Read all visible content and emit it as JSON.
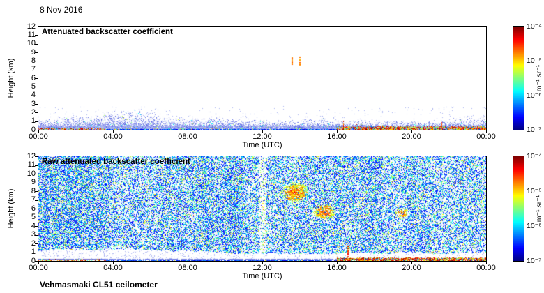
{
  "page": {
    "date_label": "8 Nov 2016",
    "footer_label": "Vehmasmaki CL51 ceilometer"
  },
  "chart_data": [
    {
      "type": "heatmap",
      "title": "Attenuated backscatter coefficient",
      "xlabel": "Time (UTC)",
      "ylabel": "Height (km)",
      "x_ticks": [
        "00:00",
        "04:00",
        "08:00",
        "12:00",
        "16:00",
        "20:00",
        "00:00"
      ],
      "y_ticks": [
        "12",
        "11",
        "10",
        "9",
        "8",
        "7",
        "6",
        "5",
        "4",
        "3",
        "2",
        "1",
        "0"
      ],
      "x_range_hours": [
        0,
        24
      ],
      "y_range_km": [
        0,
        12
      ],
      "colorbar": {
        "colormap": "jet",
        "scale": "log",
        "ticks": [
          "10⁻⁴",
          "10⁻⁵",
          "10⁻⁶",
          "10⁻⁷"
        ],
        "label": "m⁻¹ sr⁻¹",
        "max": "1e-4 m-1 sr-1",
        "min": "1e-7 m-1 sr-1"
      },
      "render": {
        "seed": 1337,
        "kind": "clean",
        "boundary_layer": {
          "top_km": 1.2,
          "surface_strong_after_h": 16,
          "surface_specks_before_h": 3.6
        },
        "features": [
          {
            "kind": "cloud-dash",
            "t": 13.58,
            "h0": 7.55,
            "h1": 8.35
          },
          {
            "kind": "cloud-dash",
            "t": 13.97,
            "h0": 7.45,
            "h1": 8.45
          },
          {
            "kind": "spike",
            "t": 16.33,
            "h0": 0.25,
            "h1": 0.95
          },
          {
            "kind": "spike",
            "t": 17.05,
            "h0": 0.2,
            "h1": 0.6
          },
          {
            "kind": "spike",
            "t": 21.6,
            "h0": 0.2,
            "h1": 0.85
          },
          {
            "kind": "spike",
            "t": 22.45,
            "h0": 0.2,
            "h1": 0.6
          }
        ]
      }
    },
    {
      "type": "heatmap",
      "title": "Raw attenuated backscatter coefficient",
      "xlabel": "Time (UTC)",
      "ylabel": "Height (km)",
      "x_ticks": [
        "00:00",
        "04:00",
        "08:00",
        "12:00",
        "16:00",
        "20:00",
        "00:00"
      ],
      "y_ticks": [
        "12",
        "11",
        "10",
        "9",
        "8",
        "7",
        "6",
        "5",
        "4",
        "3",
        "2",
        "1",
        "0"
      ],
      "x_range_hours": [
        0,
        24
      ],
      "y_range_km": [
        0,
        12
      ],
      "colorbar": {
        "colormap": "jet",
        "scale": "log",
        "ticks": [
          "10⁻⁴",
          "10⁻⁵",
          "10⁻⁶",
          "10⁻⁷"
        ],
        "label": "m⁻¹ sr⁻¹",
        "max": "1e-4 m-1 sr-1",
        "min": "1e-7 m-1 sr-1"
      },
      "render": {
        "seed": 7777,
        "kind": "raw",
        "noise_density": 0.6,
        "clear_band_km": [
          0.14,
          1.05
        ],
        "light_column_hours": [
          11.85,
          12.15
        ],
        "features": [
          {
            "kind": "plume",
            "t": 13.75,
            "rt": 0.75,
            "h": 7.8,
            "rh": 1.25,
            "boost": 0.4,
            "core_dashes": 70
          },
          {
            "kind": "plume",
            "t": 15.3,
            "rt": 0.65,
            "h": 5.6,
            "rh": 0.95,
            "boost": 0.35,
            "core_dashes": 25
          },
          {
            "kind": "plume",
            "t": 19.45,
            "rt": 0.38,
            "h": 5.4,
            "rh": 0.65,
            "boost": 0.3,
            "core_dashes": 6
          },
          {
            "kind": "spike",
            "t": 16.55,
            "h0": 0.5,
            "h1": 1.7
          }
        ]
      }
    }
  ]
}
